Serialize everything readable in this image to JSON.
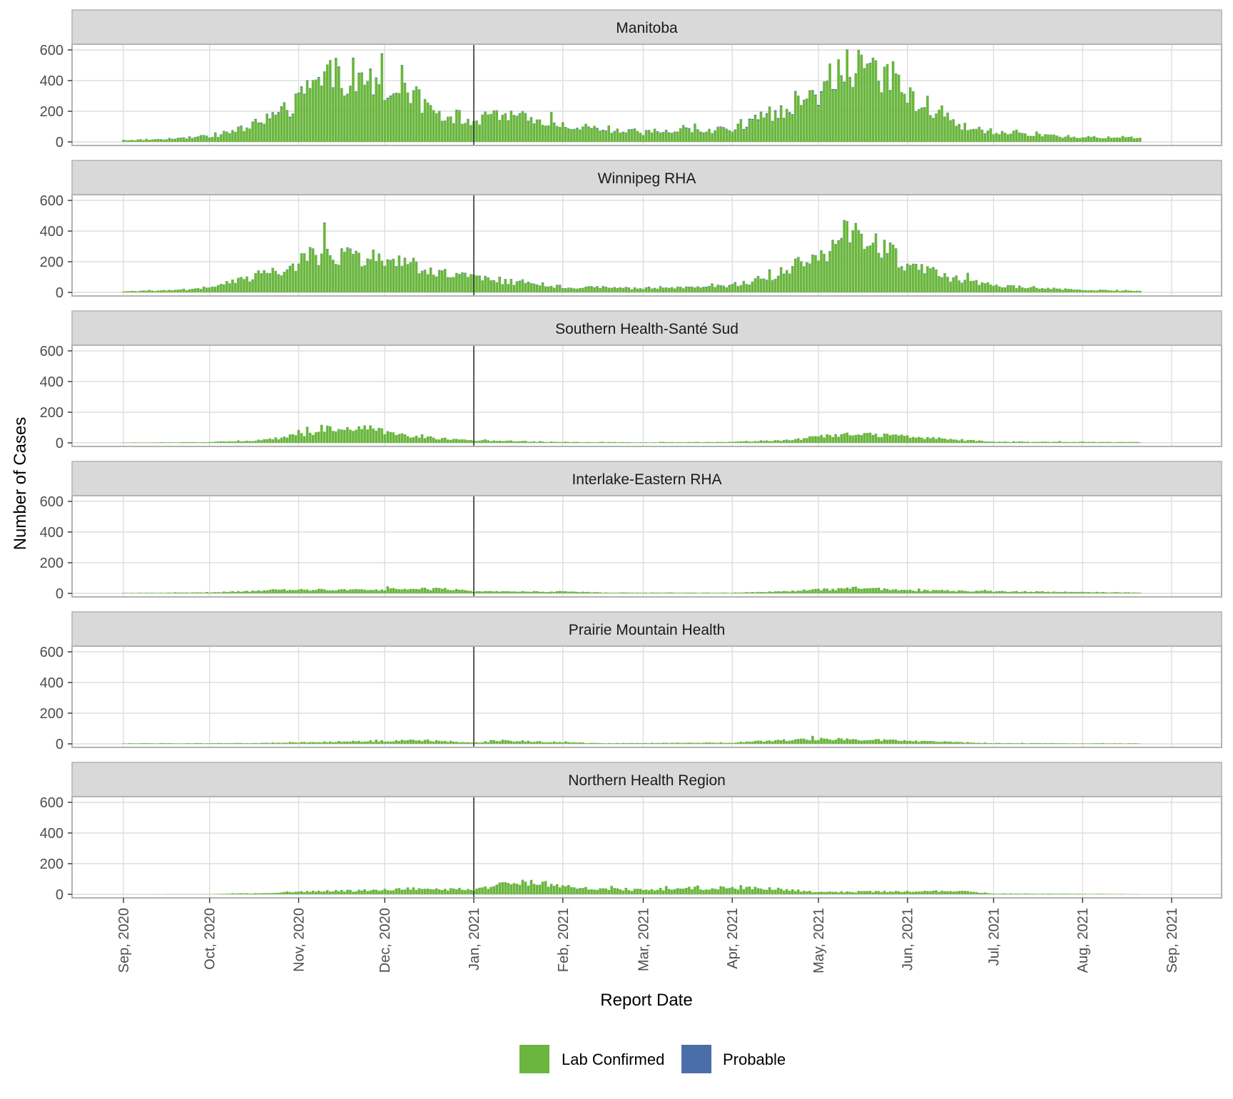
{
  "chart_data": {
    "type": "bar",
    "stacked": true,
    "xlabel": "Report Date",
    "ylabel": "Number of Cases",
    "ylim": [
      0,
      600
    ],
    "yticks": [
      0,
      200,
      400,
      600
    ],
    "date_range": [
      "2020-09-01",
      "2021-08-21"
    ],
    "xticks": [
      {
        "date": "2020-09-01",
        "label": "Sep, 2020"
      },
      {
        "date": "2020-10-01",
        "label": "Oct, 2020"
      },
      {
        "date": "2020-11-01",
        "label": "Nov, 2020"
      },
      {
        "date": "2020-12-01",
        "label": "Dec, 2020"
      },
      {
        "date": "2021-01-01",
        "label": "Jan, 2021"
      },
      {
        "date": "2021-02-01",
        "label": "Feb, 2021"
      },
      {
        "date": "2021-03-01",
        "label": "Mar, 2021"
      },
      {
        "date": "2021-04-01",
        "label": "Apr, 2021"
      },
      {
        "date": "2021-05-01",
        "label": "May, 2021"
      },
      {
        "date": "2021-06-01",
        "label": "Jun, 2021"
      },
      {
        "date": "2021-07-01",
        "label": "Jul, 2021"
      },
      {
        "date": "2021-08-01",
        "label": "Aug, 2021"
      },
      {
        "date": "2021-09-01",
        "label": "Sep, 2021"
      }
    ],
    "reference_line": "2021-01-01",
    "legend": {
      "position": "bottom",
      "entries": [
        {
          "label": "Lab Confirmed",
          "color": "#6ab63f"
        },
        {
          "label": "Probable",
          "color": "#4b6ea8"
        }
      ]
    },
    "series_profile_note": "",
    "panels": [
      {
        "title": "Manitoba",
        "lab_confirmed_profile": [
          [
            "2020-09-01",
            12
          ],
          [
            "2020-09-15",
            18
          ],
          [
            "2020-09-25",
            30
          ],
          [
            "2020-10-01",
            35
          ],
          [
            "2020-10-10",
            70
          ],
          [
            "2020-10-20",
            150
          ],
          [
            "2020-10-25",
            175
          ],
          [
            "2020-11-01",
            260
          ],
          [
            "2020-11-05",
            360
          ],
          [
            "2020-11-10",
            420
          ],
          [
            "2020-11-20",
            430
          ],
          [
            "2020-11-25",
            390
          ],
          [
            "2020-12-01",
            320
          ],
          [
            "2020-12-10",
            300
          ],
          [
            "2020-12-20",
            190
          ],
          [
            "2021-01-01",
            140
          ],
          [
            "2021-01-10",
            170
          ],
          [
            "2021-01-20",
            150
          ],
          [
            "2021-02-01",
            110
          ],
          [
            "2021-02-15",
            85
          ],
          [
            "2021-03-01",
            55
          ],
          [
            "2021-03-15",
            85
          ],
          [
            "2021-04-01",
            75
          ],
          [
            "2021-04-10",
            140
          ],
          [
            "2021-04-20",
            230
          ],
          [
            "2021-05-01",
            320
          ],
          [
            "2021-05-10",
            480
          ],
          [
            "2021-05-20",
            470
          ],
          [
            "2021-06-01",
            300
          ],
          [
            "2021-06-10",
            220
          ],
          [
            "2021-06-20",
            100
          ],
          [
            "2021-07-01",
            65
          ],
          [
            "2021-07-15",
            45
          ],
          [
            "2021-08-01",
            30
          ],
          [
            "2021-08-21",
            30
          ]
        ],
        "probable_profile": [
          [
            "2020-09-01",
            0
          ],
          [
            "2020-11-01",
            8
          ],
          [
            "2020-12-01",
            6
          ],
          [
            "2021-01-01",
            3
          ],
          [
            "2021-05-01",
            8
          ],
          [
            "2021-06-01",
            4
          ],
          [
            "2021-08-21",
            0
          ]
        ]
      },
      {
        "title": "Winnipeg RHA",
        "lab_confirmed_profile": [
          [
            "2020-09-01",
            8
          ],
          [
            "2020-09-20",
            15
          ],
          [
            "2020-10-01",
            35
          ],
          [
            "2020-10-15",
            90
          ],
          [
            "2020-10-25",
            130
          ],
          [
            "2020-11-01",
            200
          ],
          [
            "2020-11-10",
            260
          ],
          [
            "2020-11-20",
            240
          ],
          [
            "2020-12-01",
            210
          ],
          [
            "2020-12-10",
            180
          ],
          [
            "2020-12-20",
            120
          ],
          [
            "2021-01-01",
            90
          ],
          [
            "2021-01-15",
            70
          ],
          [
            "2021-02-01",
            35
          ],
          [
            "2021-03-01",
            25
          ],
          [
            "2021-04-01",
            40
          ],
          [
            "2021-04-15",
            110
          ],
          [
            "2021-05-01",
            230
          ],
          [
            "2021-05-10",
            370
          ],
          [
            "2021-05-20",
            340
          ],
          [
            "2021-06-01",
            180
          ],
          [
            "2021-06-15",
            100
          ],
          [
            "2021-07-01",
            45
          ],
          [
            "2021-08-01",
            15
          ],
          [
            "2021-08-21",
            12
          ]
        ],
        "probable_profile": [
          [
            "2020-09-01",
            0
          ],
          [
            "2020-11-15",
            4
          ],
          [
            "2021-05-10",
            5
          ],
          [
            "2021-08-21",
            0
          ]
        ]
      },
      {
        "title": "Southern Health-Santé Sud",
        "lab_confirmed_profile": [
          [
            "2020-09-01",
            2
          ],
          [
            "2020-10-01",
            5
          ],
          [
            "2020-10-20",
            20
          ],
          [
            "2020-11-01",
            50
          ],
          [
            "2020-11-15",
            100
          ],
          [
            "2020-11-25",
            95
          ],
          [
            "2020-12-05",
            55
          ],
          [
            "2020-12-20",
            30
          ],
          [
            "2021-01-01",
            15
          ],
          [
            "2021-02-01",
            6
          ],
          [
            "2021-03-01",
            4
          ],
          [
            "2021-04-01",
            6
          ],
          [
            "2021-04-20",
            20
          ],
          [
            "2021-05-10",
            55
          ],
          [
            "2021-05-25",
            50
          ],
          [
            "2021-06-10",
            30
          ],
          [
            "2021-07-01",
            8
          ],
          [
            "2021-08-21",
            5
          ]
        ],
        "probable_profile": [
          [
            "2020-09-01",
            0
          ],
          [
            "2021-08-21",
            0
          ]
        ]
      },
      {
        "title": "Interlake-Eastern RHA",
        "lab_confirmed_profile": [
          [
            "2020-09-01",
            2
          ],
          [
            "2020-10-01",
            6
          ],
          [
            "2020-11-01",
            25
          ],
          [
            "2020-11-20",
            22
          ],
          [
            "2020-12-10",
            30
          ],
          [
            "2020-12-25",
            30
          ],
          [
            "2021-01-01",
            12
          ],
          [
            "2021-02-01",
            12
          ],
          [
            "2021-02-15",
            5
          ],
          [
            "2021-04-01",
            4
          ],
          [
            "2021-04-20",
            15
          ],
          [
            "2021-05-15",
            35
          ],
          [
            "2021-06-01",
            20
          ],
          [
            "2021-07-01",
            14
          ],
          [
            "2021-08-21",
            5
          ]
        ],
        "probable_profile": [
          [
            "2020-09-01",
            0
          ],
          [
            "2021-08-21",
            0
          ]
        ]
      },
      {
        "title": "Prairie Mountain Health",
        "lab_confirmed_profile": [
          [
            "2020-09-01",
            3
          ],
          [
            "2020-10-15",
            5
          ],
          [
            "2020-11-15",
            14
          ],
          [
            "2020-12-15",
            25
          ],
          [
            "2021-01-01",
            8
          ],
          [
            "2021-01-10",
            22
          ],
          [
            "2021-01-25",
            15
          ],
          [
            "2021-02-15",
            4
          ],
          [
            "2021-04-01",
            8
          ],
          [
            "2021-04-25",
            30
          ],
          [
            "2021-05-15",
            30
          ],
          [
            "2021-06-01",
            20
          ],
          [
            "2021-07-01",
            5
          ],
          [
            "2021-08-21",
            3
          ]
        ],
        "probable_profile": [
          [
            "2020-09-01",
            0
          ],
          [
            "2021-08-21",
            0
          ]
        ]
      },
      {
        "title": "Northern Health Region",
        "lab_confirmed_profile": [
          [
            "2020-09-01",
            0
          ],
          [
            "2020-10-01",
            1
          ],
          [
            "2020-10-20",
            8
          ],
          [
            "2020-11-01",
            18
          ],
          [
            "2020-12-01",
            28
          ],
          [
            "2020-12-15",
            40
          ],
          [
            "2021-01-01",
            30
          ],
          [
            "2021-01-15",
            80
          ],
          [
            "2021-01-25",
            70
          ],
          [
            "2021-02-10",
            38
          ],
          [
            "2021-03-01",
            30
          ],
          [
            "2021-03-20",
            40
          ],
          [
            "2021-04-10",
            45
          ],
          [
            "2021-05-01",
            15
          ],
          [
            "2021-06-01",
            20
          ],
          [
            "2021-06-20",
            22
          ],
          [
            "2021-07-01",
            5
          ],
          [
            "2021-08-01",
            3
          ],
          [
            "2021-08-21",
            1
          ]
        ],
        "probable_profile": [
          [
            "2020-09-01",
            0
          ],
          [
            "2021-08-21",
            0
          ]
        ]
      }
    ]
  }
}
